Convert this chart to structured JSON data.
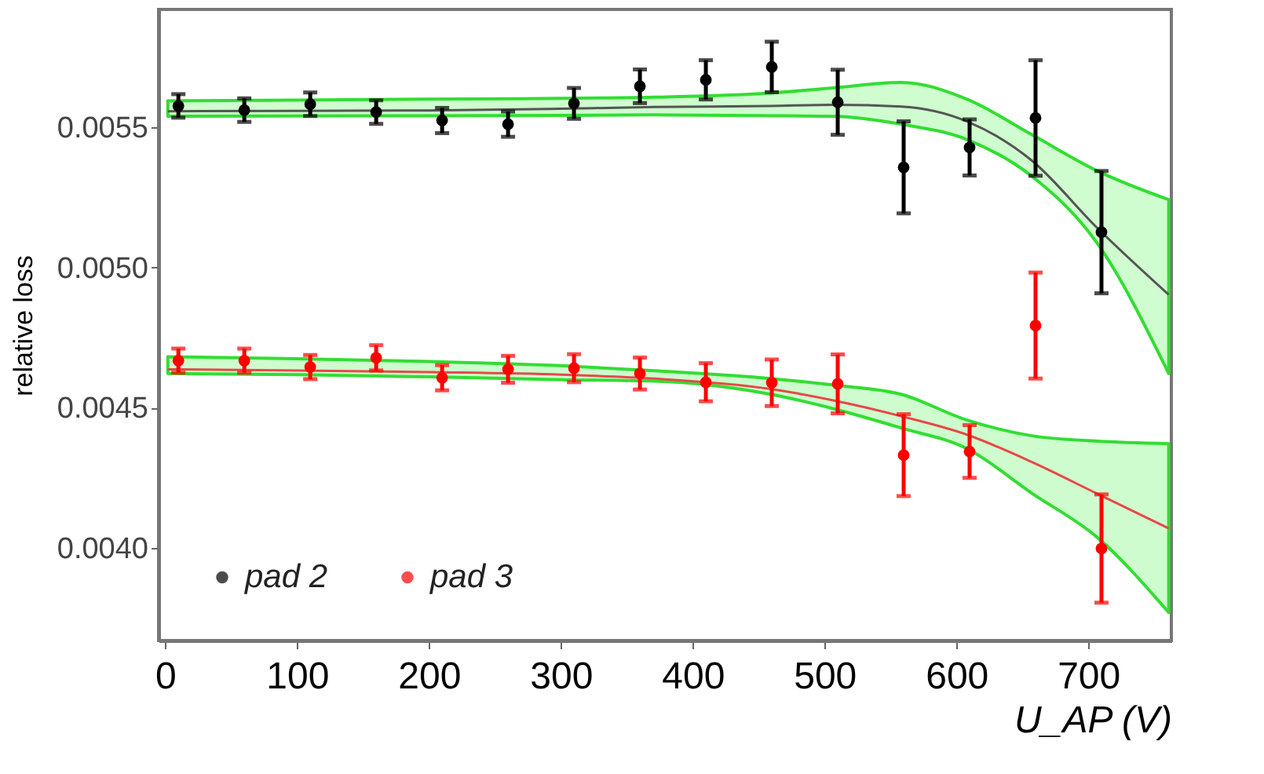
{
  "chart_data": {
    "type": "scatter",
    "xlabel": "U_AP (V)",
    "ylabel": "relative loss",
    "xlim": [
      -5,
      763
    ],
    "ylim": [
      0.00367,
      0.00592
    ],
    "xticks": [
      0,
      100,
      200,
      300,
      400,
      500,
      600,
      700
    ],
    "yticks": [
      {
        "value": 0.004,
        "label": "0.0040"
      },
      0.0045,
      {
        "value": 0.005,
        "label": "0.0050"
      },
      0.0055
    ],
    "grid": false,
    "legend": "bottom left",
    "marker": "circle",
    "series": [
      {
        "name": "pad 2",
        "color": "#000000",
        "x": [
          10,
          60,
          110,
          160,
          210,
          260,
          310,
          360,
          410,
          460,
          510,
          560,
          610,
          660,
          710
        ],
        "values": [
          0.005576,
          0.005561,
          0.005582,
          0.005554,
          0.005524,
          0.005511,
          0.005585,
          0.005646,
          0.005669,
          0.005715,
          0.005589,
          0.005357,
          0.005428,
          0.005533,
          0.005126
        ],
        "errors": [
          4.2e-05,
          4.2e-05,
          4.2e-05,
          4.2e-05,
          4.5e-05,
          4.5e-05,
          5.5e-05,
          6e-05,
          7e-05,
          9e-05,
          0.000116,
          0.000164,
          0.0001,
          0.000206,
          0.000218
        ]
      },
      {
        "name": "pad 3",
        "color": "#ff0000",
        "x": [
          10,
          60,
          110,
          160,
          210,
          260,
          310,
          360,
          410,
          460,
          510,
          560,
          610,
          660,
          710
        ],
        "values": [
          0.004668,
          0.004668,
          0.004645,
          0.004678,
          0.004607,
          0.004637,
          0.004641,
          0.004622,
          0.004591,
          0.004589,
          0.004585,
          0.004331,
          0.004344,
          0.004793,
          0.003998
        ],
        "errors": [
          4.3e-05,
          4.3e-05,
          4.3e-05,
          4.5e-05,
          4.5e-05,
          4.8e-05,
          5e-05,
          5.7e-05,
          6.8e-05,
          8.3e-05,
          0.000105,
          0.000146,
          9.4e-05,
          0.000189,
          0.000193
        ]
      },
      {
        "type": "line",
        "marker": "none",
        "color": "#555555",
        "x": [
          2,
          100,
          200,
          300,
          371,
          459,
          508,
          558,
          608,
          657,
          707,
          761
        ],
        "values": [
          0.005557,
          0.005558,
          0.00556,
          0.005566,
          0.005572,
          0.005576,
          0.00558,
          0.005574,
          0.005521,
          0.005382,
          0.00514,
          0.004903
        ],
        "upper": [
          0.005594,
          0.005597,
          0.0056,
          0.005603,
          0.005607,
          0.005622,
          0.005641,
          0.00566,
          0.0056,
          0.005474,
          0.005344,
          0.005242
        ],
        "lower": [
          0.005539,
          0.00554,
          0.005541,
          0.005542,
          0.005544,
          0.005541,
          0.005539,
          0.005511,
          0.005456,
          0.005326,
          0.005085,
          0.004622
        ]
      },
      {
        "type": "line",
        "marker": "none",
        "color": "#e84848",
        "x": [
          2,
          100,
          200,
          300,
          371,
          459,
          508,
          558,
          608,
          657,
          707,
          761
        ],
        "values": [
          0.004637,
          0.004633,
          0.004627,
          0.004618,
          0.004604,
          0.004567,
          0.004525,
          0.00447,
          0.004404,
          0.004307,
          0.004193,
          0.00407
        ],
        "upper": [
          0.004682,
          0.004675,
          0.004665,
          0.00465,
          0.004632,
          0.004604,
          0.00458,
          0.004548,
          0.004456,
          0.0044,
          0.004381,
          0.004372
        ],
        "lower": [
          0.004622,
          0.004618,
          0.00461,
          0.0046,
          0.004595,
          0.004548,
          0.004495,
          0.004428,
          0.004354,
          0.004196,
          0.004037,
          0.00377
        ]
      }
    ]
  }
}
